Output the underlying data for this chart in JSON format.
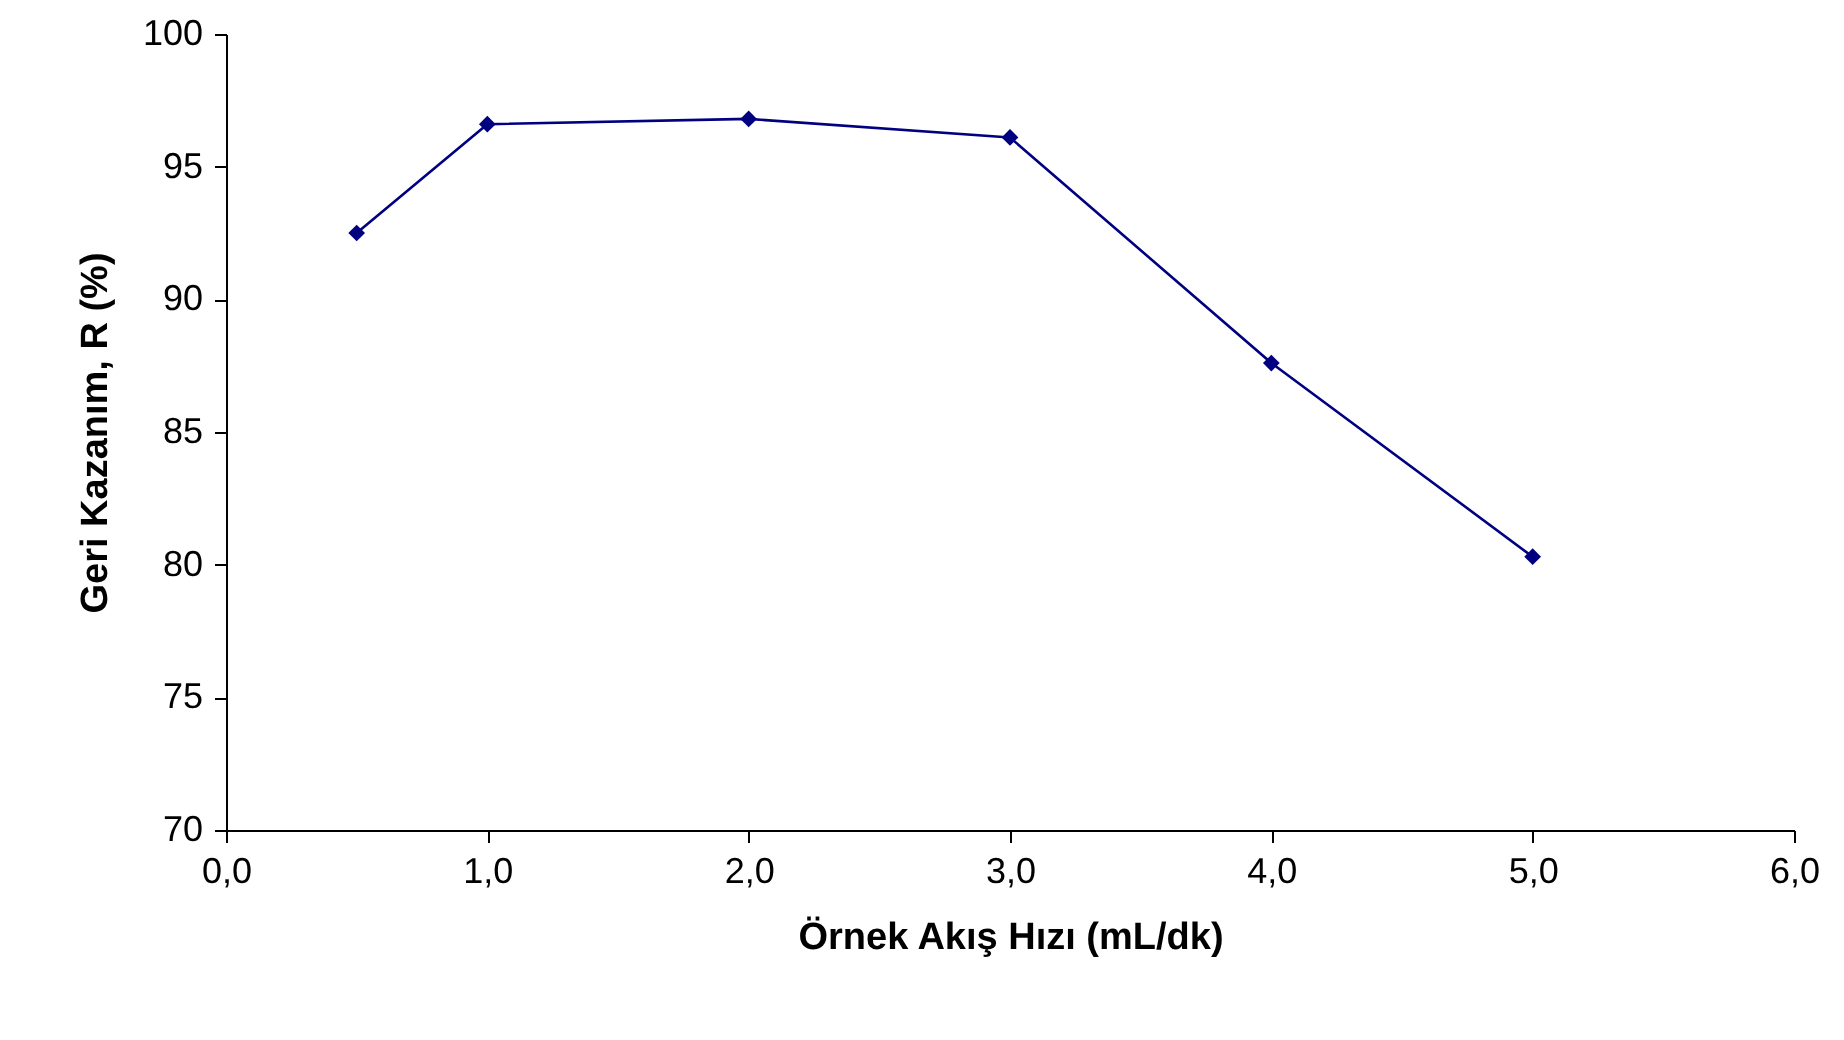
{
  "chart_data": {
    "type": "line",
    "xlabel": "Örnek Akış Hızı (mL/dk)",
    "ylabel": "Geri Kazanım, R (%)",
    "x": [
      0.5,
      1.0,
      2.0,
      3.0,
      4.0,
      5.0
    ],
    "series": [
      {
        "color": "#000080",
        "values": [
          92.5,
          96.6,
          96.8,
          96.1,
          87.6,
          80.3
        ]
      }
    ],
    "xlim": [
      0,
      6
    ],
    "xticks": [
      {
        "value": 0,
        "label": "0,0"
      },
      {
        "value": 1,
        "label": "1,0"
      },
      {
        "value": 2,
        "label": "2,0"
      },
      {
        "value": 3,
        "label": "3,0"
      },
      {
        "value": 4,
        "label": "4,0"
      },
      {
        "value": 5,
        "label": "5,0"
      },
      {
        "value": 6,
        "label": "6,0"
      }
    ],
    "ylim": [
      70,
      100
    ],
    "yticks": [
      70,
      75,
      80,
      85,
      90,
      95,
      100
    ],
    "grid": false,
    "marker": "diamond",
    "line_style": "solid"
  }
}
